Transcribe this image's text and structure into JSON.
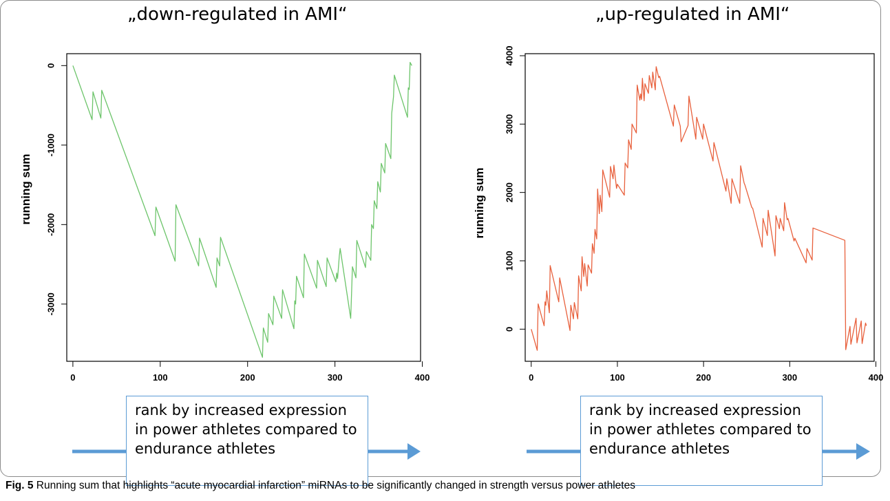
{
  "figure": {
    "caption_label": "Fig. 5",
    "caption_text": "Running sum that highlights “acute myocardial infarction” miRNAs to be significantly changed in strength versus power athletes",
    "rank_box_lines": [
      "rank by increased expression",
      "in power athletes compared to",
      "endurance athletes"
    ],
    "arrow_color": "#5b9bd5"
  },
  "chart_data": [
    {
      "type": "line",
      "title": "„down-regulated in AMI“",
      "xlabel": "",
      "ylabel": "running sum",
      "color": "#6cc46a",
      "xlim": [
        -7,
        398
      ],
      "ylim": [
        -3720,
        150
      ],
      "xticks": [
        0,
        100,
        200,
        300,
        400
      ],
      "yticks": [
        0,
        -1000,
        -2000,
        -3000
      ],
      "grid": false,
      "series": [
        {
          "x": [
            0,
            22,
            23,
            32,
            33,
            94,
            95,
            117,
            118,
            144,
            145,
            164,
            165,
            168,
            169,
            217,
            218,
            223,
            224,
            229,
            230,
            239,
            240,
            253,
            254,
            255,
            256,
            264,
            265,
            279,
            280,
            290,
            291,
            301,
            302,
            303,
            305,
            306,
            318,
            319,
            320,
            324,
            325,
            335,
            336,
            341,
            342,
            344,
            345,
            348,
            349,
            352,
            353,
            357,
            358,
            364,
            365,
            367,
            368,
            383,
            384,
            385,
            386,
            388
          ],
          "y": [
            0,
            -680,
            -330,
            -660,
            -310,
            -2140,
            -1780,
            -2460,
            -1750,
            -2520,
            -2170,
            -2790,
            -2420,
            -2520,
            -2160,
            -3670,
            -3300,
            -3480,
            -3120,
            -3260,
            -2900,
            -3180,
            -2820,
            -3310,
            -2960,
            -3000,
            -2650,
            -2920,
            -2370,
            -2800,
            -2450,
            -2780,
            -2420,
            -2720,
            -2610,
            -2680,
            -2390,
            -2300,
            -3180,
            -2880,
            -2530,
            -2670,
            -2200,
            -2540,
            -2340,
            -2450,
            -2000,
            -2050,
            -1700,
            -1800,
            -1460,
            -1590,
            -1230,
            -1350,
            -980,
            -1170,
            -600,
            -390,
            -120,
            -650,
            -280,
            -300,
            40,
            0
          ]
        }
      ]
    },
    {
      "type": "line",
      "title": "„up-regulated in AMI“",
      "xlabel": "",
      "ylabel": "running sum",
      "color": "#e8603c",
      "xlim": [
        -7,
        398
      ],
      "ylim": [
        -470,
        4030
      ],
      "xticks": [
        0,
        100,
        200,
        300,
        400
      ],
      "yticks": [
        0,
        1000,
        2000,
        3000,
        4000
      ],
      "grid": false,
      "series": [
        {
          "x": [
            0,
            7,
            8,
            15,
            16,
            17,
            18,
            21,
            22,
            32,
            33,
            45,
            46,
            49,
            50,
            54,
            55,
            58,
            59,
            61,
            62,
            65,
            66,
            70,
            71,
            73,
            74,
            76,
            77,
            79,
            80,
            82,
            83,
            91,
            92,
            95,
            96,
            99,
            100,
            108,
            109,
            112,
            113,
            116,
            117,
            122,
            123,
            126,
            127,
            128,
            129,
            131,
            132,
            136,
            137,
            140,
            141,
            144,
            145,
            148,
            149,
            165,
            166,
            173,
            174,
            182,
            183,
            191,
            192,
            199,
            200,
            211,
            212,
            226,
            227,
            232,
            233,
            242,
            243,
            247,
            248,
            256,
            257,
            268,
            269,
            274,
            275,
            283,
            284,
            288,
            289,
            293,
            294,
            297,
            298,
            305,
            306,
            319,
            320,
            326,
            327,
            364,
            365,
            370,
            371,
            377,
            378,
            383,
            384,
            388,
            389
          ],
          "y": [
            0,
            -310,
            370,
            50,
            400,
            350,
            560,
            240,
            930,
            400,
            750,
            -20,
            350,
            150,
            390,
            150,
            780,
            560,
            1060,
            770,
            960,
            630,
            940,
            820,
            1250,
            1110,
            1460,
            1320,
            2050,
            1690,
            1960,
            1720,
            2330,
            1930,
            2380,
            2200,
            2400,
            2060,
            2120,
            1960,
            2430,
            2360,
            2770,
            2630,
            3000,
            2870,
            3570,
            3350,
            3440,
            3360,
            3670,
            3340,
            3590,
            3450,
            3710,
            3530,
            3760,
            3500,
            3840,
            3680,
            3700,
            2970,
            3280,
            2970,
            2740,
            2980,
            3410,
            2780,
            3100,
            2780,
            3000,
            2460,
            2730,
            2020,
            2200,
            1840,
            2200,
            1840,
            2390,
            2140,
            2110,
            1780,
            1770,
            1200,
            1620,
            1370,
            1740,
            1070,
            1660,
            1470,
            1620,
            1440,
            1850,
            1600,
            1620,
            1290,
            1330,
            970,
            1180,
            1010,
            1480,
            1300,
            -300,
            40,
            -220,
            160,
            -200,
            120,
            -210,
            90,
            50
          ]
        }
      ]
    }
  ]
}
